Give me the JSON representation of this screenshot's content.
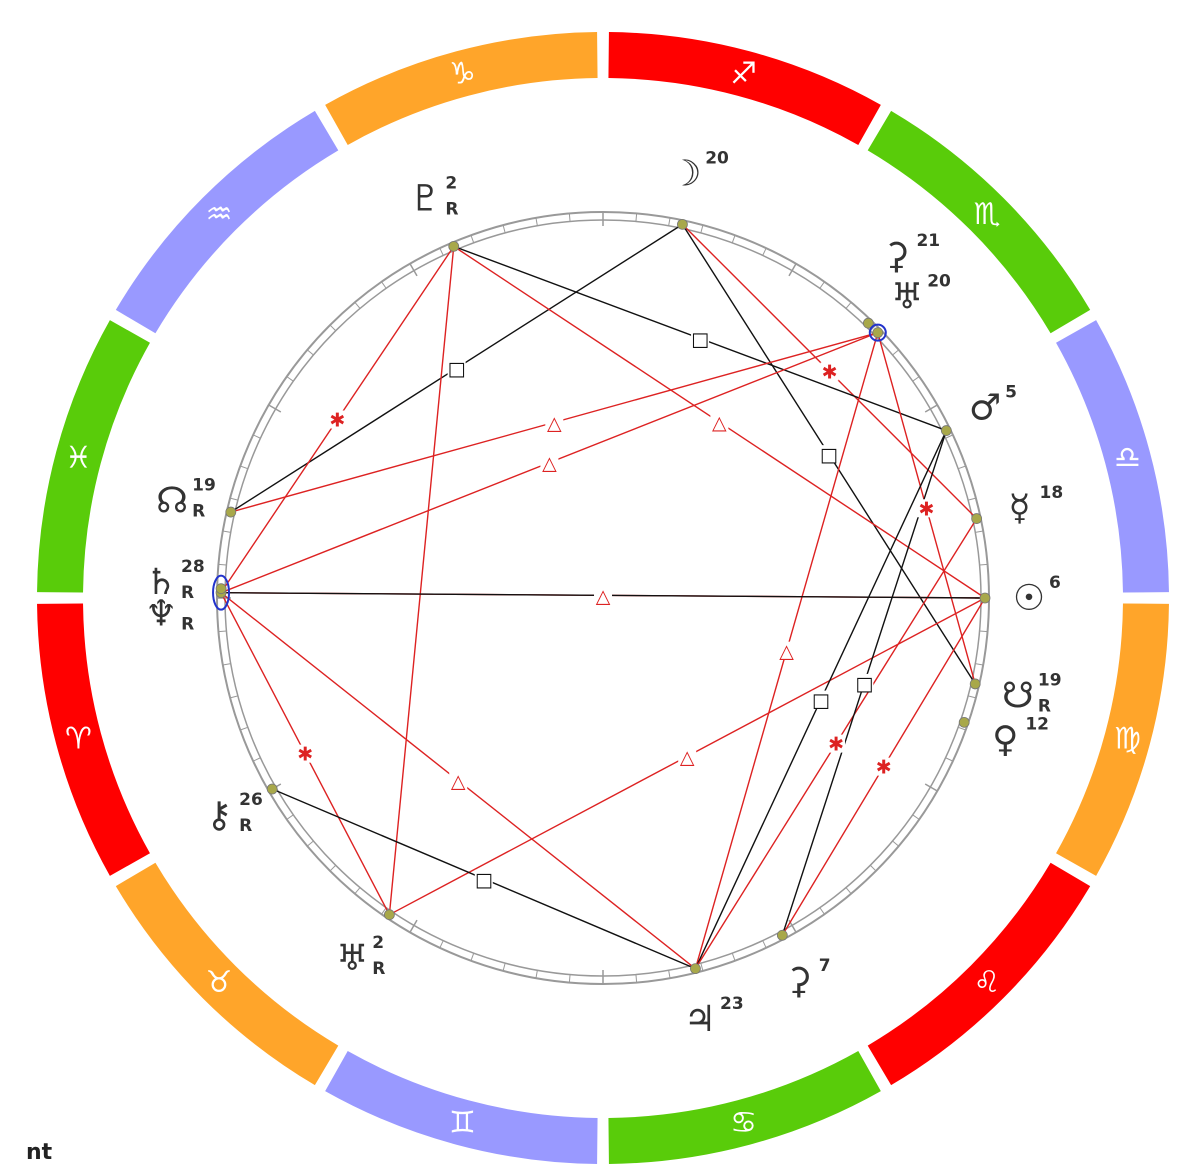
{
  "corner_label": "nt",
  "colors": {
    "fire": "#ff0000",
    "earth": "#ffa52a",
    "air": "#9999ff",
    "water": "#59cc0a",
    "aspect_red": "#dd2222",
    "aspect_black": "#111111",
    "ring": "#999999",
    "dot": "#a8a84a",
    "highlight": "#2233cc"
  },
  "signs": [
    {
      "name": "Sagittarius",
      "glyph": "♐",
      "color": "#ff0000",
      "icon": "sagittarius-icon"
    },
    {
      "name": "Scorpio",
      "glyph": "♏",
      "color": "#59cc0a",
      "icon": "scorpio-icon"
    },
    {
      "name": "Libra",
      "glyph": "♎",
      "color": "#9999ff",
      "icon": "libra-icon"
    },
    {
      "name": "Virgo",
      "glyph": "♍",
      "color": "#ffa52a",
      "icon": "virgo-icon"
    },
    {
      "name": "Leo",
      "glyph": "♌",
      "color": "#ff0000",
      "icon": "leo-icon"
    },
    {
      "name": "Cancer",
      "glyph": "♋",
      "color": "#59cc0a",
      "icon": "cancer-icon"
    },
    {
      "name": "Gemini",
      "glyph": "♊",
      "color": "#9999ff",
      "icon": "gemini-icon"
    },
    {
      "name": "Taurus",
      "glyph": "♉",
      "color": "#ffa52a",
      "icon": "taurus-icon"
    },
    {
      "name": "Aries",
      "glyph": "♈",
      "color": "#ff0000",
      "icon": "aries-icon"
    },
    {
      "name": "Pisces",
      "glyph": "♓",
      "color": "#59cc0a",
      "icon": "pisces-icon"
    },
    {
      "name": "Aquarius",
      "glyph": "♒",
      "color": "#9999ff",
      "icon": "aquarius-icon"
    },
    {
      "name": "Capricorn",
      "glyph": "♑",
      "color": "#ffa52a",
      "icon": "capricorn-icon"
    }
  ],
  "planets": [
    {
      "id": "moon",
      "glyph": "☽",
      "degree": "20",
      "retro": "",
      "icon": "moon-icon"
    },
    {
      "id": "proserpina",
      "glyph": "⚳",
      "degree": "21",
      "retro": "",
      "icon": "proserpina-icon"
    },
    {
      "id": "uranian",
      "glyph": "♅",
      "degree": "20",
      "retro": "",
      "icon": "uranian-point-icon"
    },
    {
      "id": "mars",
      "glyph": "♂",
      "degree": "5",
      "retro": "",
      "icon": "mars-icon"
    },
    {
      "id": "mercury",
      "glyph": "☿",
      "degree": "18",
      "retro": "",
      "icon": "mercury-icon"
    },
    {
      "id": "sun",
      "glyph": "☉",
      "degree": "6",
      "retro": "",
      "icon": "sun-icon"
    },
    {
      "id": "south-node",
      "glyph": "☋",
      "degree": "19",
      "retro": "R",
      "icon": "south-node-icon"
    },
    {
      "id": "venus",
      "glyph": "♀",
      "degree": "12",
      "retro": "",
      "icon": "venus-icon"
    },
    {
      "id": "ceres",
      "glyph": "⚳",
      "degree": "7",
      "retro": "",
      "icon": "ceres-icon"
    },
    {
      "id": "jupiter",
      "glyph": "♃",
      "degree": "23",
      "retro": "",
      "icon": "jupiter-icon"
    },
    {
      "id": "uranus",
      "glyph": "♅",
      "degree": "2",
      "retro": "R",
      "icon": "uranus-icon"
    },
    {
      "id": "chiron",
      "glyph": "⚷",
      "degree": "26",
      "retro": "R",
      "icon": "chiron-icon"
    },
    {
      "id": "saturn",
      "glyph": "♄",
      "degree": "28",
      "retro": "R",
      "icon": "saturn-icon"
    },
    {
      "id": "neptune",
      "glyph": "♆",
      "degree": "",
      "retro": "R",
      "icon": "neptune-icon"
    },
    {
      "id": "north-node",
      "glyph": "☊",
      "degree": "19",
      "retro": "R",
      "icon": "north-node-icon"
    },
    {
      "id": "pluto",
      "glyph": "♇",
      "degree": "2",
      "retro": "R",
      "icon": "pluto-icon"
    }
  ],
  "aspects": [
    {
      "from": "moon",
      "to": "south-node",
      "type": "square",
      "color": "black",
      "mark": "□"
    },
    {
      "from": "moon",
      "to": "north-node",
      "type": "square",
      "color": "black",
      "mark": "□"
    },
    {
      "from": "moon",
      "to": "mercury",
      "type": "sextile",
      "color": "red",
      "mark": "✱"
    },
    {
      "from": "pluto",
      "to": "mars",
      "type": "square",
      "color": "black",
      "mark": "□"
    },
    {
      "from": "pluto",
      "to": "sun",
      "type": "trine",
      "color": "red",
      "mark": "△"
    },
    {
      "from": "pluto",
      "to": "uranus",
      "type": "quincunx",
      "color": "red",
      "mark": ""
    },
    {
      "from": "pluto",
      "to": "saturn",
      "type": "sextile",
      "color": "red",
      "mark": "✱"
    },
    {
      "from": "uranian",
      "to": "north-node",
      "type": "trine",
      "color": "red",
      "mark": "△"
    },
    {
      "from": "uranian",
      "to": "saturn",
      "type": "trine",
      "color": "red",
      "mark": "△"
    },
    {
      "from": "uranian",
      "to": "jupiter",
      "type": "trine",
      "color": "red",
      "mark": "△"
    },
    {
      "from": "uranian",
      "to": "south-node",
      "type": "sextile",
      "color": "red",
      "mark": "✱"
    },
    {
      "from": "saturn",
      "to": "sun",
      "type": "trine",
      "color": "red",
      "mark": "△"
    },
    {
      "from": "saturn",
      "to": "uranus",
      "type": "sextile",
      "color": "red",
      "mark": "✱"
    },
    {
      "from": "saturn",
      "to": "jupiter",
      "type": "trine",
      "color": "red",
      "mark": "△"
    },
    {
      "from": "uranus",
      "to": "sun",
      "type": "trine",
      "color": "red",
      "mark": "△"
    },
    {
      "from": "chiron",
      "to": "jupiter",
      "type": "square",
      "color": "black",
      "mark": "□"
    },
    {
      "from": "jupiter",
      "to": "mars",
      "type": "square",
      "color": "black",
      "mark": "□"
    },
    {
      "from": "jupiter",
      "to": "mercury",
      "type": "sextile",
      "color": "red",
      "mark": "✱"
    },
    {
      "from": "ceres",
      "to": "mars",
      "type": "square",
      "color": "black",
      "mark": "□"
    },
    {
      "from": "ceres",
      "to": "sun",
      "type": "sextile",
      "color": "red",
      "mark": "✱"
    },
    {
      "from": "sun",
      "to": "saturn2",
      "type": "square",
      "color": "black",
      "mark": ""
    }
  ]
}
